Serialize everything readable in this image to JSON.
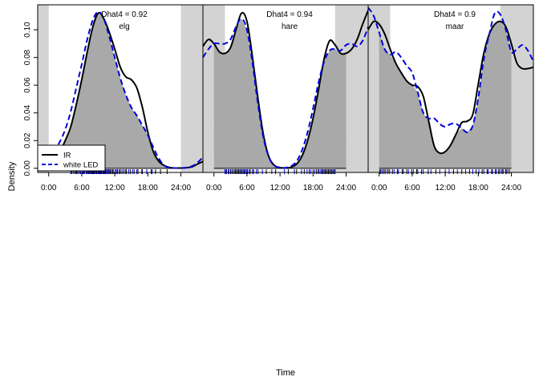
{
  "chart_data": {
    "type": "area",
    "xlabel": "Time",
    "ylabel": "Density",
    "ylim": [
      -0.003,
      0.118
    ],
    "y_ticks": [
      0.0,
      0.02,
      0.04,
      0.06,
      0.08,
      0.1
    ],
    "y_tick_labels": [
      "0.00",
      "0.02",
      "0.04",
      "0.06",
      "0.08",
      "0.10"
    ],
    "x_ticks_hours": [
      0,
      6,
      12,
      18,
      24
    ],
    "x_tick_labels": [
      "0:00",
      "6:00",
      "12:00",
      "18:00",
      "24:00"
    ],
    "legend": {
      "position": "bottom-left of first panel",
      "entries": [
        {
          "label": "IR",
          "color": "#000000",
          "style": "solid"
        },
        {
          "label": "white LED",
          "color": "#0000dd",
          "style": "dashed"
        }
      ]
    },
    "colors": {
      "overlap_fill": "#a9a9a9",
      "shade": "#d3d3d3",
      "ir_line": "#000000",
      "led_line": "#0000dd",
      "rug_ir": "#000000",
      "rug_led": "#0000ff"
    },
    "panels": [
      {
        "title": "Dhat4 = 0.92",
        "species": "elg",
        "xlim_hours": [
          -2,
          28
        ],
        "shade_before": [
          -2,
          0
        ],
        "shade_after": [
          24,
          28
        ],
        "series": [
          {
            "name": "IR",
            "x": [
              -2,
              0,
              1,
              2,
              3,
              4,
              5,
              6,
              7,
              8,
              9,
              10,
              11,
              12,
              13,
              14,
              15,
              16,
              17,
              18,
              19,
              20,
              21,
              22,
              23,
              24,
              25,
              26,
              27,
              28
            ],
            "values": [
              0.005,
              0.005,
              0.008,
              0.012,
              0.02,
              0.03,
              0.046,
              0.064,
              0.084,
              0.102,
              0.112,
              0.108,
              0.098,
              0.086,
              0.073,
              0.066,
              0.064,
              0.058,
              0.044,
              0.026,
              0.012,
              0.005,
              0.002,
              0.0005,
              0.0002,
              0.0002,
              0.0004,
              0.001,
              0.003,
              0.005
            ]
          },
          {
            "name": "white LED",
            "x": [
              -2,
              0,
              1,
              2,
              3,
              4,
              5,
              6,
              7,
              8,
              9,
              10,
              11,
              12,
              13,
              14,
              15,
              16,
              17,
              18,
              19,
              20,
              21,
              22,
              23,
              24,
              25,
              26,
              27,
              28
            ],
            "values": [
              0.007,
              0.009,
              0.013,
              0.019,
              0.028,
              0.041,
              0.058,
              0.075,
              0.093,
              0.107,
              0.113,
              0.108,
              0.095,
              0.08,
              0.065,
              0.053,
              0.044,
              0.038,
              0.031,
              0.024,
              0.015,
              0.007,
              0.002,
              0.0005,
              0.0002,
              0.0002,
              0.0005,
              0.0015,
              0.004,
              0.008
            ]
          }
        ],
        "rug_ir": [
          4.2,
          4.8,
          5.1,
          5.6,
          6.2,
          6.4,
          6.9,
          7.3,
          7.5,
          7.8,
          8.0,
          8.2,
          8.5,
          8.7,
          9.0,
          9.2,
          9.4,
          9.6,
          9.9,
          10.1,
          10.3,
          10.6,
          10.9,
          11.2,
          11.6,
          12.1,
          12.5,
          13.0,
          13.6,
          14.1,
          14.8,
          15.5,
          16.2,
          17.0,
          17.8,
          18.6,
          19.4,
          20.3,
          21.5
        ],
        "rug_led": [
          4.0,
          4.5,
          5.0,
          5.3,
          5.8,
          6.1,
          6.5,
          6.8,
          7.0,
          7.2,
          7.4,
          7.7,
          7.9,
          8.1,
          8.3,
          8.6,
          8.8,
          9.1,
          9.3,
          9.5,
          9.8,
          10.0,
          10.2,
          10.5,
          10.8,
          11.0,
          11.4,
          11.8,
          12.3,
          12.8,
          13.3,
          13.9,
          14.5,
          15.2,
          16.0,
          16.9,
          17.8,
          18.8
        ]
      },
      {
        "title": "Dhat4 = 0.94",
        "species": "hare",
        "xlim_hours": [
          -2,
          28
        ],
        "shade_before": [
          -2,
          2
        ],
        "shade_after": [
          22,
          28
        ],
        "series": [
          {
            "name": "IR",
            "x": [
              -2,
              -1,
              0,
              1,
              2,
              3,
              4,
              5,
              6,
              7,
              8,
              9,
              10,
              11,
              12,
              13,
              14,
              15,
              16,
              17,
              18,
              19,
              20,
              21,
              22,
              23,
              24,
              25,
              26,
              27,
              28
            ],
            "values": [
              0.088,
              0.093,
              0.09,
              0.084,
              0.083,
              0.087,
              0.1,
              0.112,
              0.106,
              0.08,
              0.05,
              0.024,
              0.008,
              0.002,
              0.0005,
              0.0002,
              0.0008,
              0.003,
              0.009,
              0.02,
              0.036,
              0.057,
              0.079,
              0.092,
              0.089,
              0.083,
              0.083,
              0.086,
              0.093,
              0.104,
              0.114
            ]
          },
          {
            "name": "white LED",
            "x": [
              -2,
              -1,
              0,
              1,
              2,
              3,
              4,
              5,
              6,
              7,
              8,
              9,
              10,
              11,
              12,
              13,
              14,
              15,
              16,
              17,
              18,
              19,
              20,
              21,
              22,
              23,
              24,
              25,
              26,
              27,
              28
            ],
            "values": [
              0.08,
              0.086,
              0.09,
              0.09,
              0.09,
              0.093,
              0.102,
              0.108,
              0.1,
              0.076,
              0.046,
              0.022,
              0.008,
              0.002,
              0.0005,
              0.0004,
              0.0015,
              0.005,
              0.013,
              0.026,
              0.043,
              0.062,
              0.077,
              0.085,
              0.086,
              0.085,
              0.089,
              0.09,
              0.088,
              0.092,
              0.102
            ]
          }
        ],
        "rug_ir": [
          2.2,
          2.6,
          3.0,
          3.4,
          3.8,
          4.1,
          4.5,
          4.9,
          5.3,
          5.7,
          6.1,
          6.6,
          7.2,
          8.0,
          9.5,
          11.2,
          13.5,
          15.0,
          16.4,
          17.3,
          18.0,
          18.6,
          19.1,
          19.6,
          20.0,
          20.4,
          20.8,
          21.2,
          21.6,
          22.0
        ],
        "rug_led": [
          2.0,
          2.3,
          2.7,
          3.1,
          3.5,
          3.9,
          4.3,
          4.7,
          5.1,
          5.5,
          5.9,
          6.4,
          7.0,
          7.7,
          8.8,
          10.5,
          12.8,
          14.6,
          15.9,
          16.9,
          17.6,
          18.3,
          18.9,
          19.4,
          19.8,
          20.2,
          20.6,
          21.0,
          21.4,
          21.8
        ]
      },
      {
        "title": "Dhat4 = 0.9",
        "species": "maar",
        "xlim_hours": [
          -2,
          28
        ],
        "shade_before": [
          -2,
          2
        ],
        "shade_after": [
          22,
          28
        ],
        "series": [
          {
            "name": "IR",
            "x": [
              -2,
              -1,
              0,
              1,
              2,
              3,
              4,
              5,
              6,
              7,
              8,
              9,
              10,
              11,
              12,
              13,
              14,
              15,
              16,
              17,
              18,
              19,
              20,
              21,
              22,
              23,
              24,
              25,
              26,
              27,
              28
            ],
            "values": [
              0.1,
              0.106,
              0.104,
              0.097,
              0.086,
              0.076,
              0.069,
              0.063,
              0.06,
              0.059,
              0.052,
              0.034,
              0.016,
              0.011,
              0.012,
              0.017,
              0.025,
              0.033,
              0.034,
              0.039,
              0.061,
              0.083,
              0.097,
              0.104,
              0.106,
              0.102,
              0.09,
              0.076,
              0.072,
              0.072,
              0.073
            ]
          },
          {
            "name": "white LED",
            "x": [
              -2,
              -1,
              0,
              1,
              2,
              3,
              4,
              5,
              6,
              7,
              8,
              9,
              10,
              11,
              12,
              13,
              14,
              15,
              16,
              17,
              18,
              19,
              20,
              21,
              22,
              23,
              24,
              25,
              26,
              27,
              28
            ],
            "values": [
              0.116,
              0.11,
              0.098,
              0.086,
              0.082,
              0.084,
              0.08,
              0.074,
              0.069,
              0.055,
              0.04,
              0.036,
              0.036,
              0.032,
              0.03,
              0.032,
              0.032,
              0.029,
              0.026,
              0.031,
              0.051,
              0.079,
              0.097,
              0.112,
              0.111,
              0.1,
              0.084,
              0.086,
              0.089,
              0.085,
              0.077
            ]
          }
        ],
        "rug_ir": [
          0.3,
          0.9,
          1.6,
          2.4,
          3.3,
          4.2,
          5.0,
          5.9,
          6.8,
          7.7,
          8.9,
          10.3,
          12.0,
          13.5,
          15.0,
          16.4,
          17.6,
          18.7,
          19.6,
          20.4,
          21.1,
          21.7,
          22.3,
          23.0,
          23.6
        ],
        "rug_led": [
          0.1,
          0.6,
          1.2,
          1.9,
          2.7,
          3.5,
          4.4,
          5.3,
          6.2,
          7.0,
          8.0,
          9.4,
          11.0,
          12.7,
          14.2,
          15.7,
          17.0,
          18.1,
          19.0,
          19.8,
          20.6,
          21.3,
          21.9,
          22.5,
          23.2
        ]
      }
    ]
  }
}
